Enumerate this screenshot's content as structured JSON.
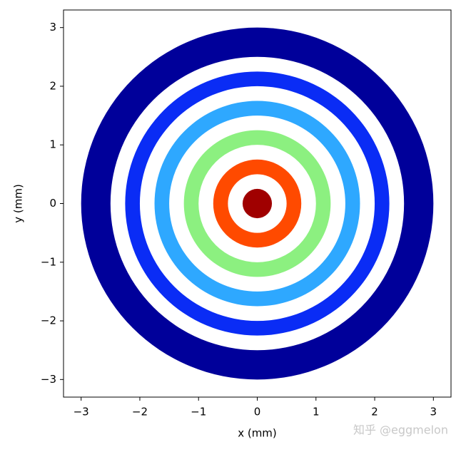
{
  "chart_data": {
    "type": "rings",
    "xlabel": "x (mm)",
    "ylabel": "y (mm)",
    "xlim": [
      -3.3,
      3.3
    ],
    "ylim": [
      -3.3,
      3.3
    ],
    "xticks": [
      {
        "value": -3,
        "label": "−3"
      },
      {
        "value": -2,
        "label": "−2"
      },
      {
        "value": -1,
        "label": "−1"
      },
      0,
      1,
      2,
      3
    ],
    "yticks": [
      {
        "value": -3,
        "label": "−3"
      },
      {
        "value": -2,
        "label": "−2"
      },
      {
        "value": -1,
        "label": "−1"
      },
      0,
      1,
      2,
      3
    ],
    "rings": [
      {
        "inner": 0,
        "outer": 0.25,
        "color": "#a00000"
      },
      {
        "inner": 0.5,
        "outer": 0.75,
        "color": "#ff4a00"
      },
      {
        "inner": 1.0,
        "outer": 1.25,
        "color": "#8cf080"
      },
      {
        "inner": 1.5,
        "outer": 1.75,
        "color": "#2ea8ff"
      },
      {
        "inner": 2.0,
        "outer": 2.25,
        "color": "#0a2cf5"
      },
      {
        "inner": 2.5,
        "outer": 3.0,
        "color": "#00009a"
      }
    ],
    "watermark": "知乎 @eggmelon"
  }
}
